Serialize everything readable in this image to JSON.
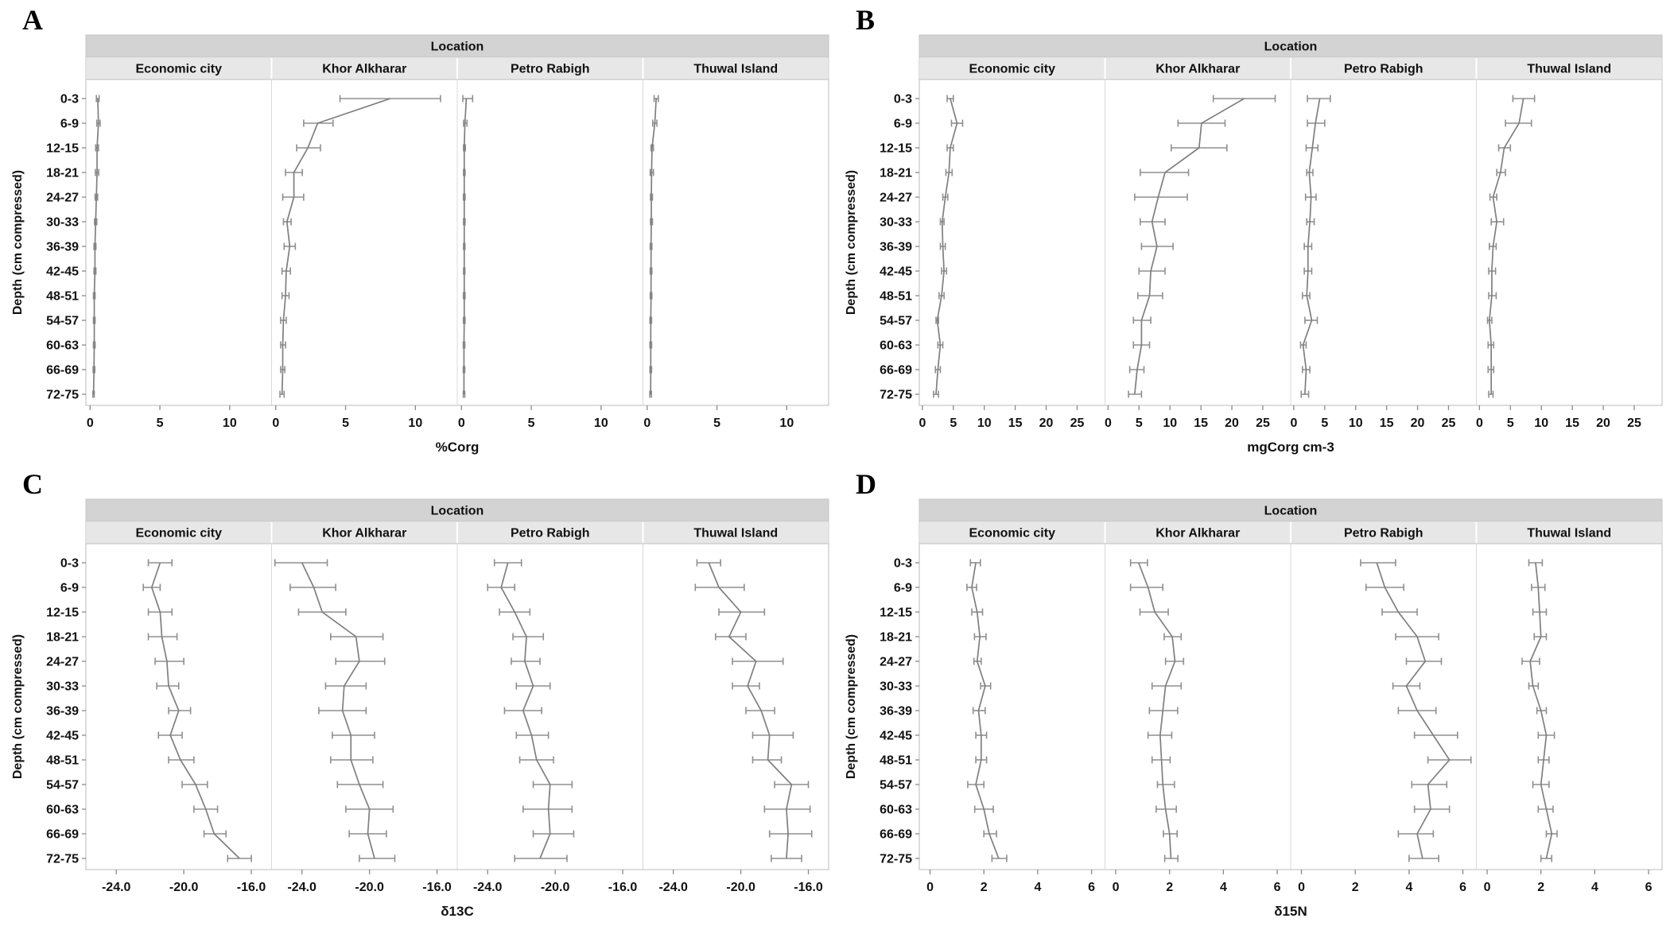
{
  "figure_title_strip": "Location",
  "ylabel": "Depth (cm compressed)",
  "depth_bins": [
    "0-3",
    "6-9",
    "12-15",
    "18-21",
    "24-27",
    "30-33",
    "36-39",
    "42-45",
    "48-51",
    "54-57",
    "60-63",
    "66-69",
    "72-75"
  ],
  "locations": [
    "Economic city",
    "Khor Alkharar",
    "Petro Rabigh",
    "Thuwal Island"
  ],
  "colors": {
    "line": "#7f7f7f",
    "error": "#8f8f8f",
    "strip_top": "#d3d3d3",
    "strip_sub": "#e7e7e7",
    "border": "#c6c6c6",
    "tick": "#8a8a8a",
    "text": "#111111"
  },
  "chart_data": [
    {
      "type": "line",
      "panel_label": "A",
      "strip_title": "Location",
      "xlabel": "%Corg",
      "ylabel": "Depth (cm compressed)",
      "orientation": "vertical-profile",
      "grid": false,
      "xticks": [
        0,
        5,
        10
      ],
      "xtick_labels": [
        "0",
        "5",
        "10"
      ],
      "xlim": [
        -0.3,
        13.0
      ],
      "categories": [
        "0-3",
        "6-9",
        "12-15",
        "18-21",
        "24-27",
        "30-33",
        "36-39",
        "42-45",
        "48-51",
        "54-57",
        "60-63",
        "66-69",
        "72-75"
      ],
      "series": [
        {
          "name": "Economic city",
          "values": [
            0.55,
            0.6,
            0.5,
            0.5,
            0.45,
            0.4,
            0.35,
            0.35,
            0.3,
            0.3,
            0.3,
            0.28,
            0.25
          ],
          "err_lo": [
            0.45,
            0.48,
            0.4,
            0.38,
            0.36,
            0.32,
            0.28,
            0.28,
            0.24,
            0.24,
            0.24,
            0.22,
            0.2
          ],
          "err_hi": [
            0.65,
            0.72,
            0.6,
            0.62,
            0.54,
            0.48,
            0.42,
            0.42,
            0.36,
            0.36,
            0.36,
            0.34,
            0.3
          ]
        },
        {
          "name": "Khor Alkharar",
          "values": [
            8.2,
            3.0,
            2.3,
            1.3,
            1.3,
            0.8,
            1.0,
            0.75,
            0.7,
            0.55,
            0.5,
            0.5,
            0.45
          ],
          "err_lo": [
            4.6,
            2.0,
            1.5,
            0.7,
            0.5,
            0.55,
            0.6,
            0.45,
            0.45,
            0.35,
            0.35,
            0.35,
            0.3
          ],
          "err_hi": [
            11.8,
            4.1,
            3.2,
            1.9,
            2.0,
            1.1,
            1.4,
            1.05,
            0.95,
            0.75,
            0.7,
            0.65,
            0.6
          ]
        },
        {
          "name": "Petro Rabigh",
          "values": [
            0.35,
            0.25,
            0.2,
            0.2,
            0.2,
            0.2,
            0.2,
            0.2,
            0.2,
            0.2,
            0.18,
            0.18,
            0.18
          ],
          "err_lo": [
            0.1,
            0.15,
            0.15,
            0.15,
            0.14,
            0.15,
            0.15,
            0.15,
            0.14,
            0.14,
            0.13,
            0.13,
            0.13
          ],
          "err_hi": [
            0.8,
            0.4,
            0.28,
            0.26,
            0.26,
            0.26,
            0.25,
            0.25,
            0.26,
            0.26,
            0.24,
            0.24,
            0.24
          ]
        },
        {
          "name": "Thuwal Island",
          "values": [
            0.65,
            0.55,
            0.35,
            0.32,
            0.3,
            0.3,
            0.28,
            0.28,
            0.28,
            0.26,
            0.26,
            0.26,
            0.25
          ],
          "err_lo": [
            0.5,
            0.4,
            0.28,
            0.22,
            0.24,
            0.24,
            0.22,
            0.22,
            0.22,
            0.2,
            0.2,
            0.2,
            0.19
          ],
          "err_hi": [
            0.8,
            0.7,
            0.45,
            0.45,
            0.38,
            0.38,
            0.34,
            0.34,
            0.34,
            0.32,
            0.32,
            0.32,
            0.31
          ]
        }
      ]
    },
    {
      "type": "line",
      "panel_label": "B",
      "strip_title": "Location",
      "xlabel": "mgCorg cm-3",
      "ylabel": "Depth (cm compressed)",
      "orientation": "vertical-profile",
      "grid": false,
      "xticks": [
        0,
        5,
        10,
        15,
        20,
        25
      ],
      "xtick_labels": [
        "0",
        "5",
        "10",
        "15",
        "20",
        "25"
      ],
      "xlim": [
        -0.5,
        29.5
      ],
      "categories": [
        "0-3",
        "6-9",
        "12-15",
        "18-21",
        "24-27",
        "30-33",
        "36-39",
        "42-45",
        "48-51",
        "54-57",
        "60-63",
        "66-69",
        "72-75"
      ],
      "series": [
        {
          "name": "Economic city",
          "values": [
            4.5,
            5.6,
            4.5,
            4.3,
            3.7,
            3.2,
            3.3,
            3.5,
            3.1,
            2.4,
            2.9,
            2.5,
            2.2
          ],
          "err_lo": [
            4.0,
            4.7,
            4.0,
            3.8,
            3.3,
            2.9,
            2.9,
            3.1,
            2.7,
            2.2,
            2.5,
            2.1,
            1.8
          ],
          "err_hi": [
            5.0,
            6.5,
            5.0,
            4.8,
            4.1,
            3.5,
            3.7,
            3.9,
            3.5,
            2.6,
            3.3,
            2.9,
            2.6
          ]
        },
        {
          "name": "Khor Alkharar",
          "values": [
            22.0,
            15.1,
            14.7,
            9.2,
            8.1,
            7.1,
            7.9,
            6.9,
            6.7,
            5.4,
            5.4,
            4.7,
            4.3
          ],
          "err_lo": [
            17.0,
            11.3,
            10.2,
            5.2,
            4.3,
            5.2,
            5.4,
            5.0,
            4.8,
            4.1,
            4.1,
            3.5,
            3.3
          ],
          "err_hi": [
            27.0,
            18.9,
            19.2,
            13.0,
            12.8,
            9.2,
            10.5,
            9.2,
            8.8,
            6.9,
            6.7,
            5.8,
            5.4
          ]
        },
        {
          "name": "Petro Rabigh",
          "values": [
            4.2,
            3.5,
            3.0,
            2.5,
            2.8,
            2.6,
            2.3,
            2.3,
            2.1,
            2.9,
            1.5,
            2.0,
            1.8
          ],
          "err_lo": [
            2.2,
            2.2,
            2.0,
            2.1,
            1.9,
            2.1,
            1.7,
            1.7,
            1.4,
            1.8,
            1.1,
            1.4,
            1.2
          ],
          "err_hi": [
            5.9,
            5.0,
            3.9,
            3.1,
            3.6,
            3.3,
            2.9,
            2.9,
            2.6,
            3.8,
            2.0,
            2.6,
            2.4
          ]
        },
        {
          "name": "Thuwal Island",
          "values": [
            7.1,
            6.4,
            4.0,
            3.4,
            2.2,
            2.8,
            2.2,
            2.0,
            2.0,
            1.6,
            1.9,
            1.9,
            1.9
          ],
          "err_lo": [
            5.4,
            4.2,
            3.1,
            2.8,
            1.7,
            1.9,
            1.6,
            1.5,
            1.5,
            1.3,
            1.4,
            1.4,
            1.5
          ],
          "err_hi": [
            8.9,
            8.4,
            5.0,
            4.2,
            2.8,
            3.9,
            2.7,
            2.6,
            2.7,
            2.0,
            2.3,
            2.3,
            2.2
          ]
        }
      ]
    },
    {
      "type": "line",
      "panel_label": "C",
      "strip_title": "Location",
      "xlabel": "δ13C",
      "ylabel": "Depth (cm compressed)",
      "orientation": "vertical-profile",
      "grid": false,
      "xticks": [
        -24,
        -20,
        -16
      ],
      "xtick_labels": [
        "-24.0",
        "-20.0",
        "-16.0"
      ],
      "xlim": [
        -25.8,
        -14.8
      ],
      "categories": [
        "0-3",
        "6-9",
        "12-15",
        "18-21",
        "24-27",
        "30-33",
        "36-39",
        "42-45",
        "48-51",
        "54-57",
        "60-63",
        "66-69",
        "72-75"
      ],
      "series": [
        {
          "name": "Economic city",
          "values": [
            -21.4,
            -21.9,
            -21.4,
            -21.3,
            -21.0,
            -20.9,
            -20.3,
            -20.8,
            -20.2,
            -19.3,
            -18.7,
            -18.2,
            -16.7
          ],
          "err_lo": [
            -22.1,
            -22.4,
            -22.1,
            -22.1,
            -21.7,
            -21.6,
            -20.9,
            -21.5,
            -20.9,
            -20.1,
            -19.4,
            -18.8,
            -17.4
          ],
          "err_hi": [
            -20.7,
            -21.4,
            -20.7,
            -20.4,
            -20.0,
            -20.3,
            -19.6,
            -20.1,
            -19.4,
            -18.6,
            -18.0,
            -17.5,
            -16.0
          ]
        },
        {
          "name": "Khor Alkharar",
          "values": [
            -24.0,
            -23.3,
            -22.8,
            -20.8,
            -20.6,
            -21.5,
            -21.6,
            -21.1,
            -21.1,
            -20.6,
            -20.0,
            -20.1,
            -19.7
          ],
          "err_lo": [
            -25.6,
            -24.7,
            -24.2,
            -22.3,
            -22.0,
            -22.6,
            -23.0,
            -22.2,
            -22.3,
            -21.9,
            -21.4,
            -21.2,
            -20.6
          ],
          "err_hi": [
            -22.5,
            -22.0,
            -21.4,
            -19.2,
            -19.1,
            -20.2,
            -20.2,
            -19.7,
            -19.8,
            -19.2,
            -18.6,
            -19.0,
            -18.5
          ]
        },
        {
          "name": "Petro Rabigh",
          "values": [
            -22.8,
            -23.2,
            -22.4,
            -21.7,
            -21.8,
            -21.3,
            -21.9,
            -21.4,
            -21.1,
            -20.3,
            -20.4,
            -20.3,
            -20.9
          ],
          "err_lo": [
            -23.6,
            -24.0,
            -23.3,
            -22.5,
            -22.6,
            -22.3,
            -23.0,
            -22.3,
            -22.1,
            -21.3,
            -21.9,
            -21.3,
            -22.4
          ],
          "err_hi": [
            -22.0,
            -22.4,
            -21.5,
            -20.7,
            -20.9,
            -20.3,
            -20.8,
            -20.4,
            -20.1,
            -19.0,
            -19.0,
            -18.9,
            -19.3
          ]
        },
        {
          "name": "Thuwal Island",
          "values": [
            -21.9,
            -21.3,
            -20.0,
            -20.7,
            -19.1,
            -19.6,
            -18.8,
            -18.3,
            -18.4,
            -17.0,
            -17.3,
            -17.2,
            -17.3
          ],
          "err_lo": [
            -22.6,
            -22.7,
            -21.3,
            -21.5,
            -20.5,
            -20.5,
            -19.7,
            -19.3,
            -19.3,
            -18.0,
            -18.6,
            -18.3,
            -18.2
          ],
          "err_hi": [
            -21.2,
            -19.8,
            -18.6,
            -19.7,
            -17.5,
            -18.9,
            -18.0,
            -16.9,
            -17.6,
            -16.0,
            -15.9,
            -15.8,
            -16.4
          ]
        }
      ]
    },
    {
      "type": "line",
      "panel_label": "D",
      "strip_title": "Location",
      "xlabel": "δ15N",
      "ylabel": "Depth (cm compressed)",
      "orientation": "vertical-profile",
      "grid": false,
      "xticks": [
        0,
        2,
        4,
        6
      ],
      "xtick_labels": [
        "0",
        "2",
        "4",
        "6"
      ],
      "xlim": [
        -0.4,
        6.5
      ],
      "categories": [
        "0-3",
        "6-9",
        "12-15",
        "18-21",
        "24-27",
        "30-33",
        "36-39",
        "42-45",
        "48-51",
        "54-57",
        "60-63",
        "66-69",
        "72-75"
      ],
      "series": [
        {
          "name": "Economic city",
          "values": [
            1.7,
            1.55,
            1.75,
            1.85,
            1.75,
            2.05,
            1.8,
            1.9,
            1.9,
            1.7,
            2.0,
            2.2,
            2.55
          ],
          "err_lo": [
            1.5,
            1.37,
            1.55,
            1.65,
            1.63,
            1.88,
            1.6,
            1.7,
            1.7,
            1.4,
            1.66,
            2.0,
            2.3
          ],
          "err_hi": [
            1.87,
            1.73,
            1.95,
            2.08,
            1.9,
            2.25,
            2.05,
            2.1,
            2.1,
            2.0,
            2.35,
            2.47,
            2.85
          ]
        },
        {
          "name": "Khor Alkharar",
          "values": [
            0.85,
            1.2,
            1.45,
            2.1,
            2.2,
            1.85,
            1.75,
            1.65,
            1.7,
            1.75,
            1.85,
            2.0,
            2.05
          ],
          "err_lo": [
            0.55,
            0.55,
            0.9,
            1.8,
            1.85,
            1.35,
            1.25,
            1.2,
            1.35,
            1.55,
            1.5,
            1.77,
            1.82
          ],
          "err_hi": [
            1.18,
            1.75,
            1.95,
            2.43,
            2.52,
            2.43,
            2.3,
            2.08,
            2.02,
            2.18,
            2.25,
            2.28,
            2.31
          ]
        },
        {
          "name": "Petro Rabigh",
          "values": [
            2.8,
            3.1,
            3.6,
            4.3,
            4.6,
            3.9,
            4.3,
            4.9,
            5.5,
            4.7,
            4.8,
            4.3,
            4.5
          ],
          "err_lo": [
            2.2,
            2.4,
            3.0,
            3.5,
            3.9,
            3.4,
            3.6,
            4.2,
            4.7,
            4.1,
            4.2,
            3.6,
            4.0
          ],
          "err_hi": [
            3.5,
            3.8,
            4.3,
            5.1,
            5.2,
            4.4,
            5.0,
            5.8,
            6.3,
            5.4,
            5.5,
            4.9,
            5.1
          ]
        },
        {
          "name": "Thuwal Island",
          "values": [
            1.8,
            1.9,
            1.95,
            2.0,
            1.6,
            1.7,
            2.0,
            2.2,
            2.1,
            2.0,
            2.2,
            2.4,
            2.2
          ],
          "err_lo": [
            1.55,
            1.65,
            1.7,
            1.75,
            1.3,
            1.55,
            1.85,
            1.9,
            1.9,
            1.7,
            1.9,
            2.2,
            2.0
          ],
          "err_hi": [
            2.05,
            2.15,
            2.2,
            2.2,
            1.95,
            1.9,
            2.2,
            2.5,
            2.3,
            2.3,
            2.45,
            2.6,
            2.4
          ]
        }
      ]
    }
  ]
}
